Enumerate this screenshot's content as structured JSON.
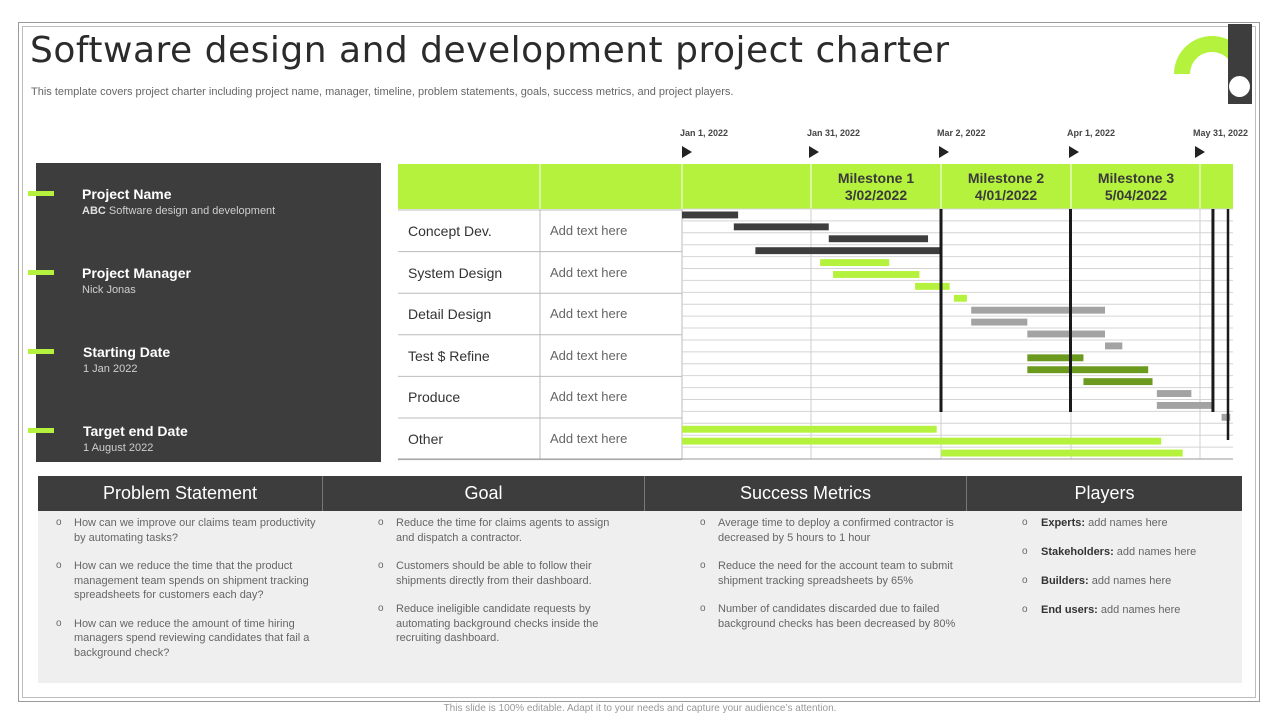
{
  "header": {
    "title": "Software design and development project charter",
    "subtitle": "This template covers project charter including project name, manager, timeline, problem statements, goals, success metrics, and project players."
  },
  "colors": {
    "accent": "#b5f23d",
    "dark": "#3d3d3d",
    "mid_green": "#6b9a1e",
    "gray_bar": "#999999"
  },
  "info": {
    "project_name_label": "Project Name",
    "project_name_prefix": "ABC",
    "project_name_value": " Software design and development",
    "manager_label": "Project Manager",
    "manager_value": "Nick Jonas",
    "start_label": "Starting Date",
    "start_value": "1 Jan 2022",
    "end_label": "Target end Date",
    "end_value": "1 August 2022"
  },
  "timeline": {
    "dates": [
      "Jan 1, 2022",
      "Jan 31, 2022",
      "Mar 2, 2022",
      "Apr 1, 2022",
      "May 31, 2022"
    ],
    "milestones": [
      {
        "name": "Milestone 1",
        "date": "3/02/2022"
      },
      {
        "name": "Milestone 2",
        "date": "4/01/2022"
      },
      {
        "name": "Milestone 3",
        "date": "5/04/2022"
      }
    ]
  },
  "phases": [
    {
      "name": "Concept Dev.",
      "text": "Add text here"
    },
    {
      "name": "System Design",
      "text": "Add text here"
    },
    {
      "name": "Detail Design",
      "text": "Add text here"
    },
    {
      "name": "Test $ Refine",
      "text": "Add text here"
    },
    {
      "name": "Produce",
      "text": "Add text here"
    },
    {
      "name": "Other",
      "text": "Add text here"
    }
  ],
  "tasks": [
    {
      "start": "2022-01-01",
      "end": "2022-01-14",
      "color": "dark"
    },
    {
      "start": "2022-01-13",
      "end": "2022-02-04",
      "color": "dark"
    },
    {
      "start": "2022-02-04",
      "end": "2022-02-27",
      "color": "dark"
    },
    {
      "start": "2022-01-18",
      "end": "2022-03-02",
      "color": "dark"
    },
    {
      "start": "2022-02-02",
      "end": "2022-02-18",
      "color": "green"
    },
    {
      "start": "2022-02-05",
      "end": "2022-02-25",
      "color": "green"
    },
    {
      "start": "2022-02-24",
      "end": "2022-03-04",
      "color": "green"
    },
    {
      "start": "2022-03-05",
      "end": "2022-03-08",
      "color": "green"
    },
    {
      "start": "2022-03-09",
      "end": "2022-04-09",
      "color": "gray"
    },
    {
      "start": "2022-03-09",
      "end": "2022-03-22",
      "color": "gray"
    },
    {
      "start": "2022-03-22",
      "end": "2022-04-09",
      "color": "gray"
    },
    {
      "start": "2022-04-09",
      "end": "2022-04-13",
      "color": "gray"
    },
    {
      "start": "2022-03-22",
      "end": "2022-04-04",
      "color": "midgreen"
    },
    {
      "start": "2022-03-22",
      "end": "2022-04-19",
      "color": "midgreen"
    },
    {
      "start": "2022-04-04",
      "end": "2022-04-20",
      "color": "midgreen"
    },
    {
      "start": "2022-04-21",
      "end": "2022-04-29",
      "color": "gray"
    },
    {
      "start": "2022-04-21",
      "end": "2022-05-04",
      "color": "gray"
    },
    {
      "start": "2022-05-06",
      "end": "2022-05-08",
      "color": "gray"
    },
    {
      "start": "2022-01-01",
      "end": "2022-03-01",
      "color": "green"
    },
    {
      "start": "2022-01-01",
      "end": "2022-04-22",
      "color": "green"
    },
    {
      "start": "2022-03-02",
      "end": "2022-04-27",
      "color": "green"
    }
  ],
  "milestone_dates": [
    "2022-03-02",
    "2022-04-01",
    "2022-05-04"
  ],
  "sections": {
    "problem": {
      "heading": "Problem Statement",
      "items": [
        "How can we improve our claims team productivity by automating tasks?",
        "How can we reduce the time that the product management team spends on shipment tracking spreadsheets for customers each day?",
        "How can we reduce the amount of time hiring managers spend reviewing candidates that fail a background check?"
      ]
    },
    "goal": {
      "heading": "Goal",
      "items": [
        "Reduce the time for claims agents to assign and dispatch a contractor.",
        "Customers should be able to follow their shipments directly from their dashboard.",
        "Reduce ineligible candidate requests by automating background checks inside the recruiting dashboard."
      ]
    },
    "metrics": {
      "heading": "Success Metrics",
      "items": [
        "Average time to deploy a confirmed contractor is decreased by 5 hours to 1 hour",
        "Reduce the need for the account team to submit shipment tracking spreadsheets by 65%",
        "Number of candidates discarded due to failed background checks has been decreased by 80%"
      ]
    },
    "players": {
      "heading": "Players",
      "items": [
        {
          "role": "Experts:",
          "value": " add names here"
        },
        {
          "role": "Stakeholders:",
          "value": " add names here"
        },
        {
          "role": "Builders:",
          "value": " add names here"
        },
        {
          "role": "End users:",
          "value": " add names here"
        }
      ]
    }
  },
  "footer": "This slide is 100% editable. Adapt it to your needs and capture your audience’s attention."
}
